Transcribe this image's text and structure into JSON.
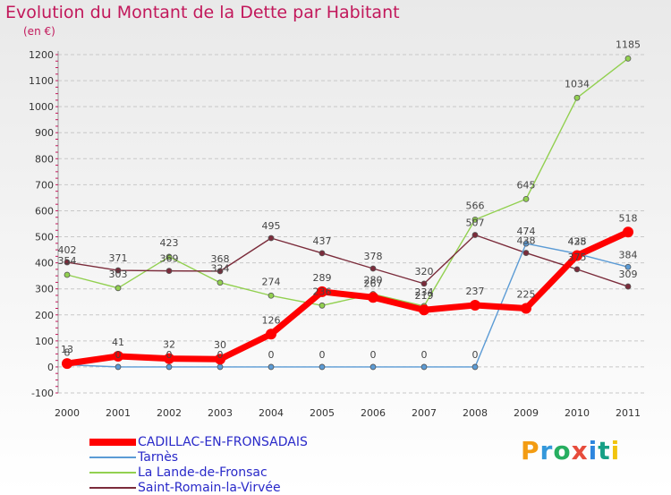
{
  "title": "Evolution du Montant de la Dette par Habitant",
  "subtitle": "(en €)",
  "logo_text": "Proxiti",
  "chart_data": {
    "type": "line",
    "title": "Evolution du Montant de la Dette par Habitant",
    "ylabel": "(en €)",
    "ylim": [
      -100,
      1200
    ],
    "yticks": [
      -100,
      0,
      100,
      200,
      300,
      400,
      500,
      600,
      700,
      800,
      900,
      1000,
      1100,
      1200
    ],
    "categories": [
      "2000",
      "2001",
      "2002",
      "2003",
      "2004",
      "2005",
      "2006",
      "2007",
      "2008",
      "2009",
      "2010",
      "2011"
    ],
    "grid": true,
    "legend": "bottom",
    "series": [
      {
        "name": "CADILLAC-EN-FRONSADAIS",
        "color": "#ff0000",
        "values": [
          13,
          41,
          32,
          30,
          126,
          289,
          267,
          219,
          237,
          225,
          428,
          518
        ]
      },
      {
        "name": "Tarnès",
        "color": "#5b9bd5",
        "values": [
          8,
          0,
          0,
          0,
          0,
          0,
          0,
          0,
          0,
          474,
          435,
          384
        ]
      },
      {
        "name": "La Lande-de-Fronsac",
        "color": "#92d050",
        "values": [
          354,
          303,
          423,
          324,
          274,
          236,
          280,
          234,
          566,
          645,
          1034,
          1185
        ]
      },
      {
        "name": "Saint-Romain-la-Virvée",
        "color": "#7b2c3b",
        "values": [
          402,
          371,
          369,
          368,
          495,
          437,
          378,
          320,
          507,
          438,
          375,
          309
        ]
      }
    ]
  }
}
